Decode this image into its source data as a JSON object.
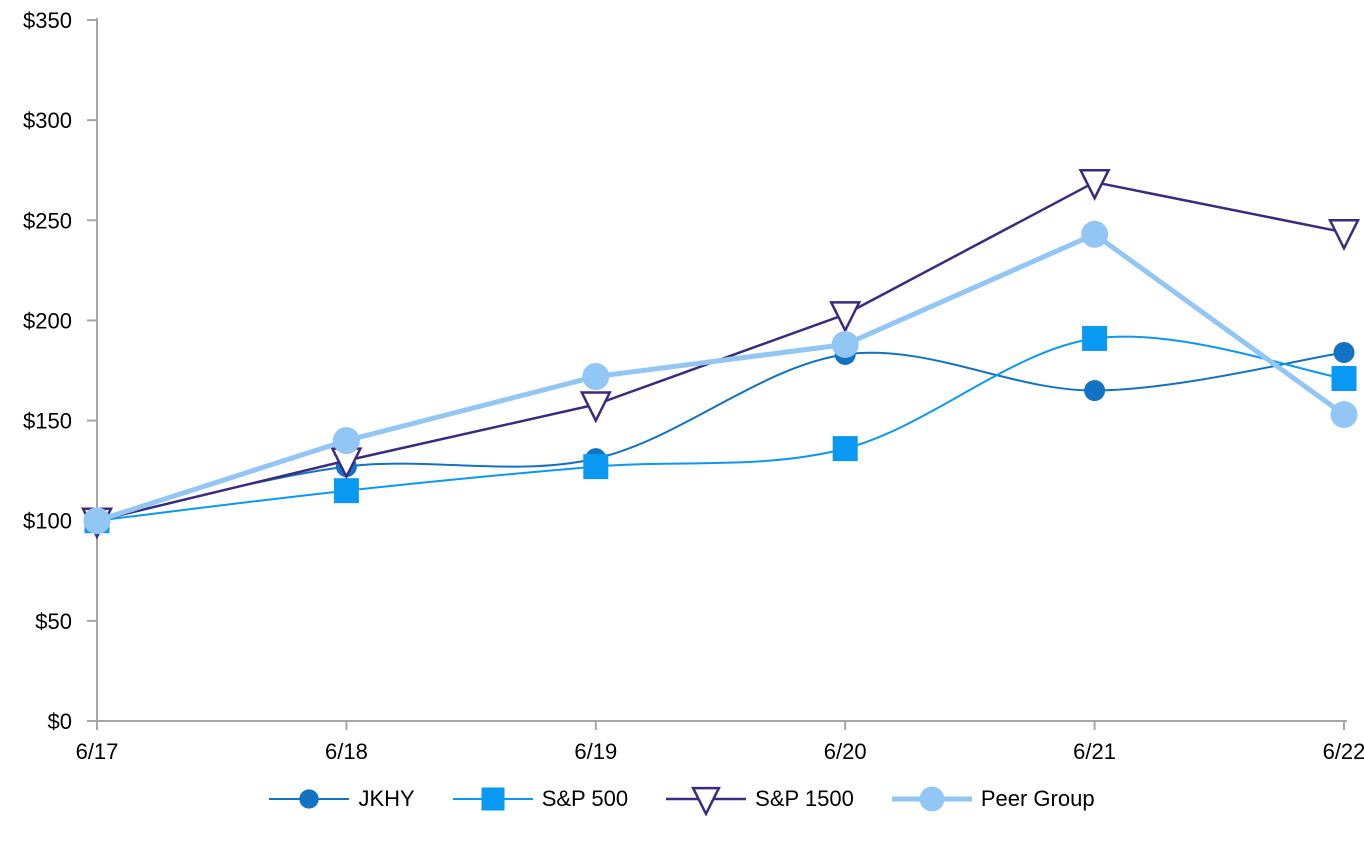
{
  "chart_data": {
    "type": "line",
    "title": "",
    "xlabel": "",
    "ylabel": "",
    "categories": [
      "6/17",
      "6/18",
      "6/19",
      "6/20",
      "6/21",
      "6/22"
    ],
    "series": [
      {
        "name": "JKHY",
        "color": "#1272c4",
        "marker": "circle",
        "marker_size": 21,
        "line_width": 2,
        "smooth": true,
        "values": [
          100,
          127,
          131,
          183,
          165,
          184
        ]
      },
      {
        "name": "S&P 500",
        "color": "#0a99f2",
        "marker": "square",
        "marker_size": 25,
        "line_width": 2,
        "smooth": true,
        "values": [
          100,
          115,
          127,
          136,
          191,
          171
        ]
      },
      {
        "name": "S&P 1500",
        "color": "#3b2a80",
        "marker": "triangle-down-open",
        "marker_size": 28,
        "line_width": 2.5,
        "smooth": false,
        "values": [
          100,
          130,
          158,
          203,
          269,
          244
        ]
      },
      {
        "name": "Peer Group",
        "color": "#92c6f5",
        "marker": "circle",
        "marker_size": 27,
        "line_width": 5,
        "smooth": false,
        "values": [
          100,
          140,
          172,
          188,
          243,
          153
        ]
      }
    ],
    "ylim": [
      0,
      350
    ],
    "yticks": [
      0,
      50,
      100,
      150,
      200,
      250,
      300,
      350
    ],
    "ytick_prefix": "$",
    "grid": false,
    "legend_position": "bottom",
    "axis_color": "#a6a6a6",
    "text_color": "#000000"
  }
}
